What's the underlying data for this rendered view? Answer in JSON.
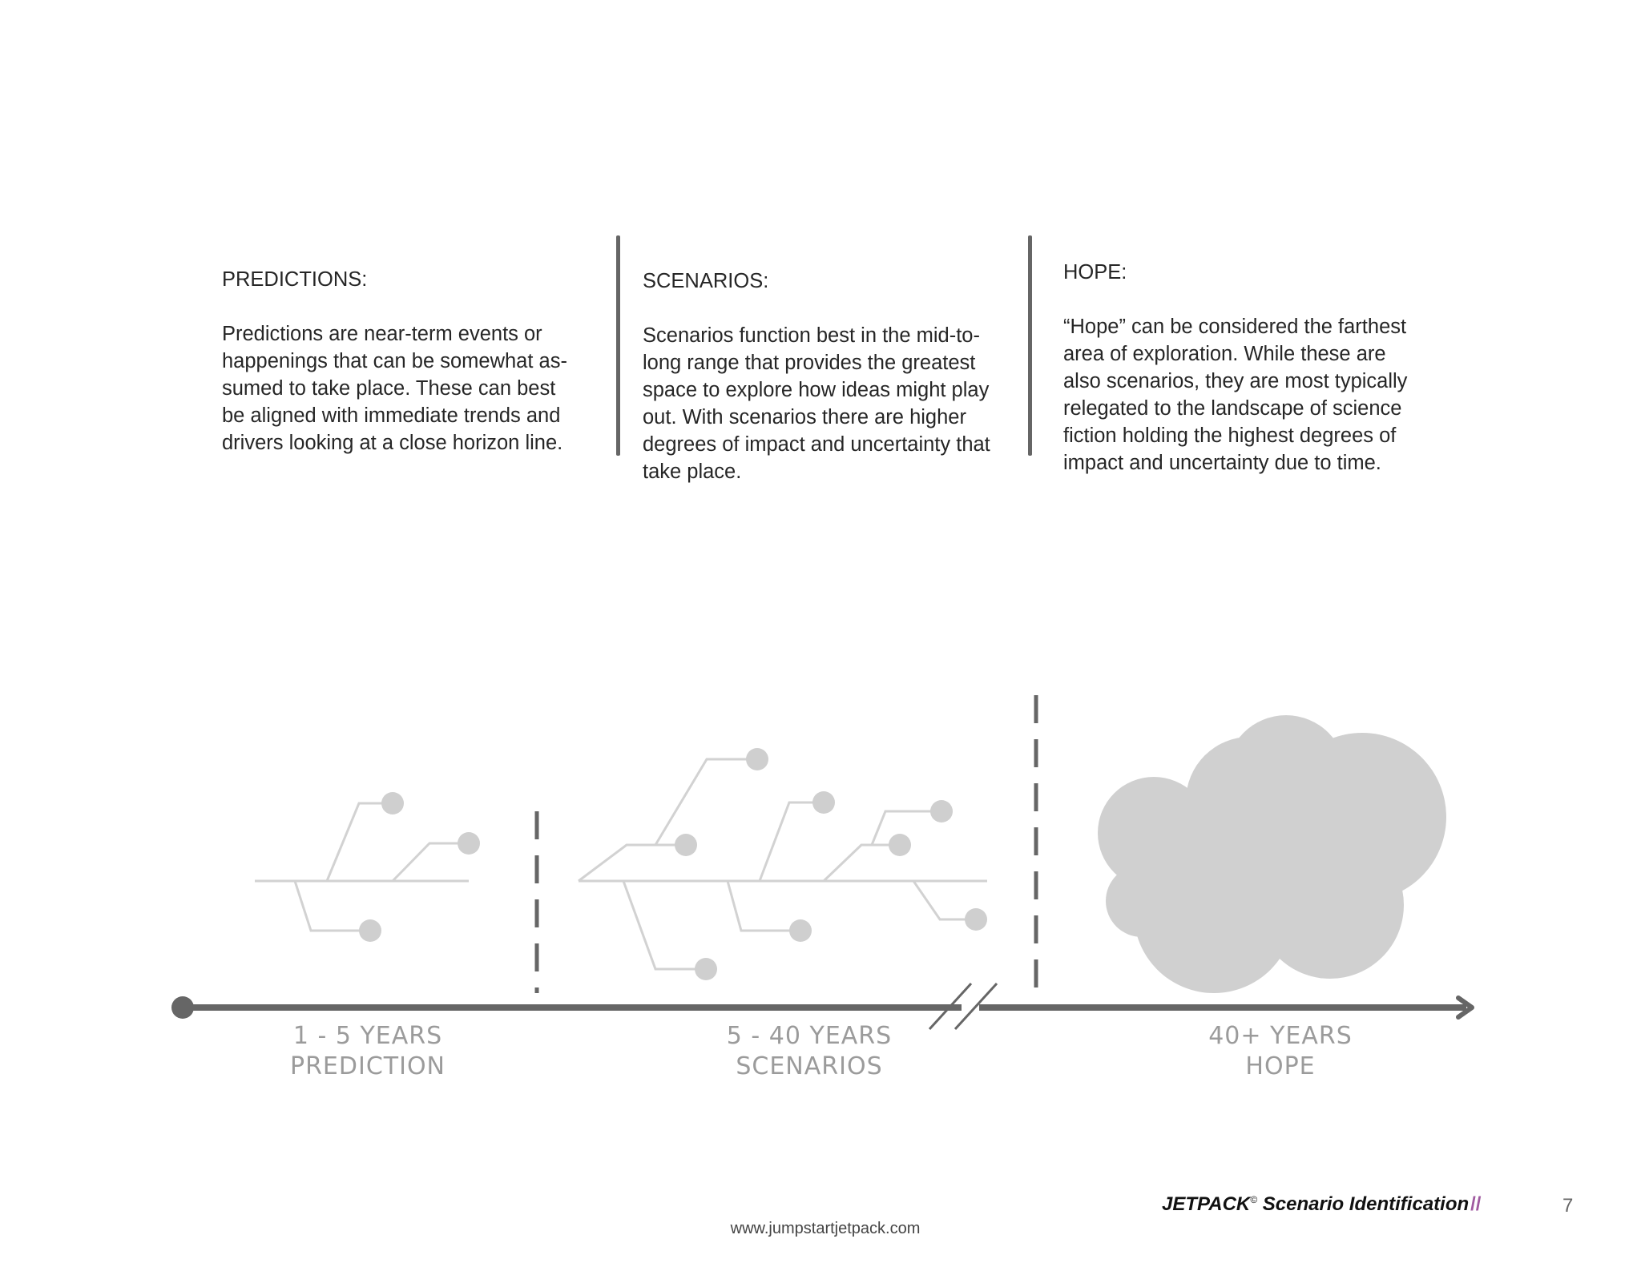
{
  "columns": [
    {
      "heading": "PREDICTIONS:",
      "body": "Predictions are near-term events or\nhappenings that can be somewhat as-\nsumed to take place. These can best\nbe aligned with immediate trends and\ndrivers looking at a close horizon line."
    },
    {
      "heading": "SCENARIOS:",
      "body": "Scenarios function best in the mid-to-\nlong range that provides the greatest\nspace to explore how ideas might play\nout. With scenarios there are higher\ndegrees of impact and uncertainty that\ntake place."
    },
    {
      "heading": "HOPE:",
      "body": "“Hope” can be considered the farthest\narea of exploration. While these are\nalso scenarios, they are most typically\nrelegated to the landscape of science\nfiction holding the highest degrees of\nimpact and uncertainty due to time."
    }
  ],
  "timeline": {
    "segments": [
      {
        "range": "1 - 5 YEARS",
        "name": "PREDICTION"
      },
      {
        "range": "5 - 40 YEARS",
        "name": "SCENARIOS"
      },
      {
        "range": "40+ YEARS",
        "name": "HOPE"
      }
    ]
  },
  "footer": {
    "brand": "JETPACK",
    "brand_mark": "©",
    "title": " Scenario Identification",
    "slashes": "//",
    "page_number": "7",
    "website": "www.jumpstartjetpack.com"
  },
  "colors": {
    "timeline_axis": "#666666",
    "branch_lines": "#d2d2d2",
    "nodes": "#cfcfcf",
    "cloud": "#d0d0d0",
    "brand_slashes": "#a05aa0"
  }
}
